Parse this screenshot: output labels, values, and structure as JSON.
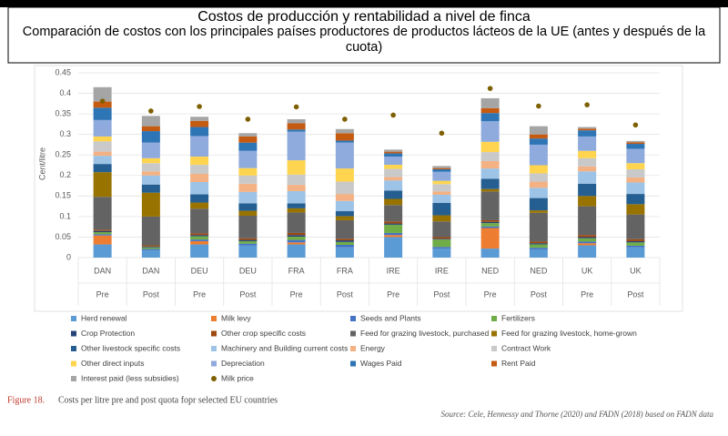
{
  "chart_data": {
    "type": "stacked_bar",
    "title": "Costos de producción y rentabilidad a nivel de finca",
    "subtitle": "Comparación de costos con los principales países productores de productos lácteos de la UE (antes y después de la cuota)",
    "ylabel": "Cent/litre",
    "categories": [
      "DAN",
      "DAN",
      "DEU",
      "DEU",
      "FRA",
      "FRA",
      "IRE",
      "IRE",
      "NED",
      "NED",
      "UK",
      "UK"
    ],
    "periods": [
      "Pre",
      "Post",
      "Pre",
      "Post",
      "Pre",
      "Post",
      "Pre",
      "Post",
      "Pre",
      "Post",
      "Pre",
      "Post"
    ],
    "ylim": [
      0,
      0.45
    ],
    "yticks": [
      0,
      0.05,
      0.1,
      0.15,
      0.2,
      0.25,
      0.3,
      0.35,
      0.4,
      0.45
    ],
    "grid": true,
    "series": [
      {
        "name": "Herd renewal",
        "color": "#5b9bd5",
        "values": [
          0.032,
          0.018,
          0.032,
          0.03,
          0.032,
          0.025,
          0.05,
          0.022,
          0.022,
          0.02,
          0.03,
          0.025
        ]
      },
      {
        "name": "Milk levy",
        "color": "#ed7d31",
        "values": [
          0.022,
          0,
          0.008,
          0,
          0.005,
          0,
          0.005,
          0,
          0.05,
          0,
          0.005,
          0
        ]
      },
      {
        "name": "Seeds and Plants",
        "color": "#4472c4",
        "values": [
          0.003,
          0.003,
          0.004,
          0.004,
          0.006,
          0.006,
          0.005,
          0.004,
          0.004,
          0.004,
          0.004,
          0.004
        ]
      },
      {
        "name": "Fertilizers",
        "color": "#70ad47",
        "values": [
          0.005,
          0.004,
          0.008,
          0.006,
          0.008,
          0.007,
          0.02,
          0.018,
          0.008,
          0.008,
          0.008,
          0.008
        ]
      },
      {
        "name": "Crop Protection",
        "color": "#264478",
        "values": [
          0.003,
          0.002,
          0.003,
          0.003,
          0.004,
          0.004,
          0.003,
          0.002,
          0.003,
          0.003,
          0.003,
          0.003
        ]
      },
      {
        "name": "Other crop specific costs",
        "color": "#9e480e",
        "values": [
          0.003,
          0.003,
          0.004,
          0.004,
          0.005,
          0.004,
          0.005,
          0.004,
          0.004,
          0.004,
          0.005,
          0.005
        ]
      },
      {
        "name": "Feed for grazing livestock, purchased",
        "color": "#636363",
        "values": [
          0.08,
          0.07,
          0.06,
          0.055,
          0.05,
          0.045,
          0.04,
          0.038,
          0.07,
          0.07,
          0.07,
          0.06
        ]
      },
      {
        "name": "Feed for grazing livestock, home-grown",
        "color": "#997300",
        "values": [
          0.06,
          0.058,
          0.015,
          0.012,
          0.01,
          0.01,
          0.015,
          0.015,
          0.006,
          0.006,
          0.025,
          0.025
        ]
      },
      {
        "name": "Other livestock specific costs",
        "color": "#255e91",
        "values": [
          0.02,
          0.02,
          0.02,
          0.018,
          0.012,
          0.012,
          0.02,
          0.03,
          0.025,
          0.03,
          0.03,
          0.025
        ]
      },
      {
        "name": "Machinery and Building current costs",
        "color": "#9dc3e6",
        "values": [
          0.02,
          0.022,
          0.03,
          0.028,
          0.03,
          0.025,
          0.025,
          0.02,
          0.025,
          0.025,
          0.03,
          0.028
        ]
      },
      {
        "name": "Energy",
        "color": "#f4b183",
        "values": [
          0.01,
          0.01,
          0.02,
          0.02,
          0.015,
          0.017,
          0.008,
          0.008,
          0.018,
          0.015,
          0.012,
          0.012
        ]
      },
      {
        "name": "Contract Work",
        "color": "#c9c9c9",
        "values": [
          0.025,
          0.02,
          0.022,
          0.02,
          0.025,
          0.03,
          0.02,
          0.018,
          0.022,
          0.02,
          0.02,
          0.02
        ]
      },
      {
        "name": "Other direct inputs",
        "color": "#ffd54f",
        "values": [
          0.012,
          0.012,
          0.02,
          0.018,
          0.035,
          0.032,
          0.01,
          0.008,
          0.025,
          0.02,
          0.018,
          0.015
        ]
      },
      {
        "name": "Depreciation",
        "color": "#8faadc",
        "values": [
          0.04,
          0.038,
          0.05,
          0.042,
          0.07,
          0.063,
          0.02,
          0.022,
          0.05,
          0.05,
          0.035,
          0.035
        ]
      },
      {
        "name": "Wages Paid",
        "color": "#2e75b6",
        "values": [
          0.03,
          0.028,
          0.022,
          0.02,
          0.005,
          0.005,
          0.008,
          0.006,
          0.02,
          0.015,
          0.015,
          0.012
        ]
      },
      {
        "name": "Rent Paid",
        "color": "#c55a11",
        "values": [
          0.015,
          0.012,
          0.015,
          0.015,
          0.015,
          0.018,
          0.004,
          0.003,
          0.012,
          0.01,
          0.004,
          0.004
        ]
      },
      {
        "name": "Interest paid (less subsidies)",
        "color": "#a5a5a5",
        "values": [
          0.035,
          0.025,
          0.01,
          0.008,
          0.01,
          0.01,
          0.005,
          0.005,
          0.024,
          0.02,
          0.004,
          0.003
        ]
      }
    ],
    "points": {
      "name": "Milk price",
      "color": "#7f6000",
      "values": [
        0.381,
        0.357,
        0.368,
        0.337,
        0.367,
        0.337,
        0.347,
        0.303,
        0.412,
        0.369,
        0.372,
        0.323
      ]
    },
    "figure_label": "Figure 18.",
    "caption": "Costs per litre pre and post quota fopr selected EU countries",
    "source": "Source: Cele, Hennessy and Thorne (2020) and FADN (2018) based on FADN data"
  }
}
